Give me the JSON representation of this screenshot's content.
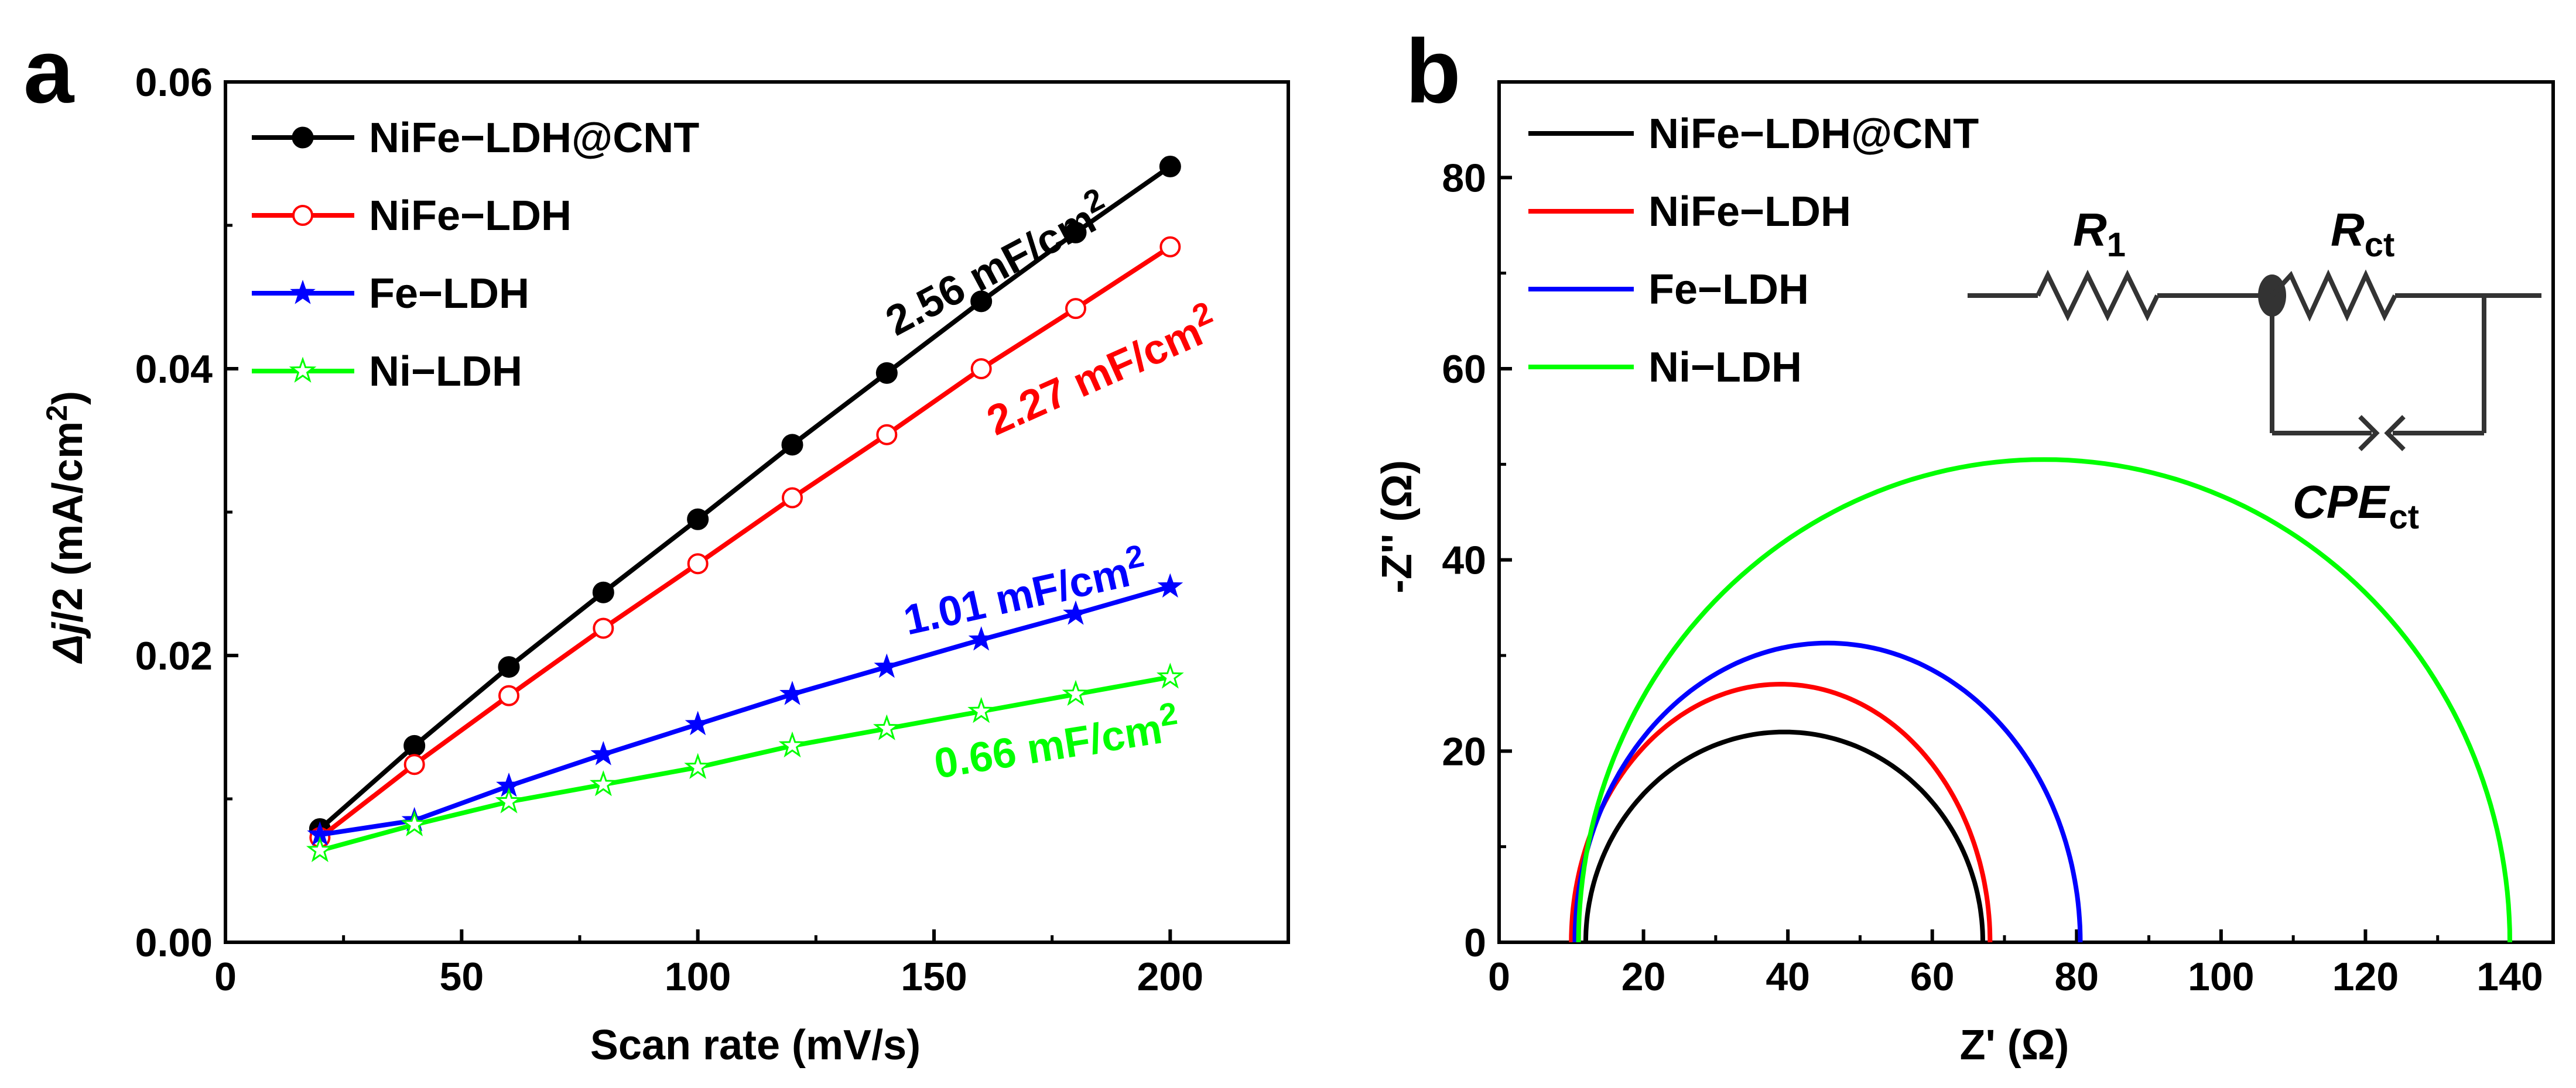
{
  "chart_data": [
    {
      "panel": "a",
      "type": "line",
      "xlabel": "Scan rate (mV/s)",
      "ylabel_prefix": "Δj",
      "ylabel_rest": "/2 (mA/cm",
      "ylabel_sup": "2",
      "ylabel_end": ")",
      "xlim": [
        0,
        225
      ],
      "ylim": [
        0,
        0.06
      ],
      "xticks": [
        0,
        50,
        100,
        150,
        200
      ],
      "xtick_labels": [
        "0",
        "50",
        "100",
        "150",
        "200"
      ],
      "yticks": [
        0,
        0.02,
        0.04,
        0.06
      ],
      "ytick_labels": [
        "0.00",
        "0.02",
        "0.04",
        "0.06"
      ],
      "x": [
        20,
        40,
        60,
        80,
        100,
        120,
        140,
        160,
        180,
        200
      ],
      "legend_position": "top-left",
      "series": [
        {
          "name": "NiFe−LDH@CNT",
          "color": "#000000",
          "marker": "filled-circle",
          "values": [
            0.0079,
            0.0137,
            0.0192,
            0.0244,
            0.0295,
            0.0347,
            0.0397,
            0.0447,
            0.0495,
            0.0541
          ],
          "slope_label": "2.56 mF/cm",
          "slope_sup": "2"
        },
        {
          "name": "NiFe−LDH",
          "color": "#ff0000",
          "marker": "open-circle",
          "values": [
            0.0073,
            0.0124,
            0.0172,
            0.0219,
            0.0264,
            0.031,
            0.0354,
            0.04,
            0.0442,
            0.0485
          ],
          "slope_label": "2.27 mF/cm",
          "slope_sup": "2"
        },
        {
          "name": "Fe−LDH",
          "color": "#0000ff",
          "marker": "filled-star",
          "values": [
            0.0075,
            0.0085,
            0.0109,
            0.0131,
            0.0152,
            0.0173,
            0.0192,
            0.0211,
            0.0229,
            0.0248
          ],
          "slope_label": "1.01 mF/cm",
          "slope_sup": "2"
        },
        {
          "name": "Ni−LDH",
          "color": "#00ff00",
          "marker": "open-star",
          "values": [
            0.0064,
            0.0082,
            0.0098,
            0.011,
            0.0122,
            0.0137,
            0.0149,
            0.0161,
            0.0173,
            0.0185
          ],
          "slope_label": "0.66 mF/cm",
          "slope_sup": "2"
        }
      ]
    },
    {
      "panel": "b",
      "type": "line",
      "xlabel": "Z' (Ω)",
      "ylabel": "-Z'' (Ω)",
      "xlim": [
        0,
        146
      ],
      "ylim": [
        0,
        90
      ],
      "xticks": [
        0,
        20,
        40,
        60,
        80,
        100,
        120,
        140
      ],
      "xtick_labels": [
        "0",
        "20",
        "40",
        "60",
        "80",
        "100",
        "120",
        "140"
      ],
      "yticks": [
        0,
        20,
        40,
        60,
        80
      ],
      "ytick_labels": [
        "0",
        "20",
        "40",
        "60",
        "80"
      ],
      "legend_position": "top-left",
      "series": [
        {
          "name": "NiFe−LDH@CNT",
          "color": "#000000",
          "zreal_start": 12.0,
          "zreal_end": 67.0,
          "peak_imag": 22.0
        },
        {
          "name": "NiFe−LDH",
          "color": "#ff0000",
          "zreal_start": 10.0,
          "zreal_end": 68.0,
          "peak_imag": 27.0
        },
        {
          "name": "Fe−LDH",
          "color": "#0000ff",
          "zreal_start": 10.5,
          "zreal_end": 80.5,
          "peak_imag": 31.3
        },
        {
          "name": "Ni−LDH",
          "color": "#00ff00",
          "zreal_start": 11.0,
          "zreal_end": 140.0,
          "peak_imag": 50.5
        }
      ],
      "circuit": {
        "r1_label": "R",
        "r1_sub": "1",
        "rct_label": "R",
        "rct_sub": "ct",
        "cpe_label": "CPE",
        "cpe_sub": "ct"
      }
    }
  ]
}
